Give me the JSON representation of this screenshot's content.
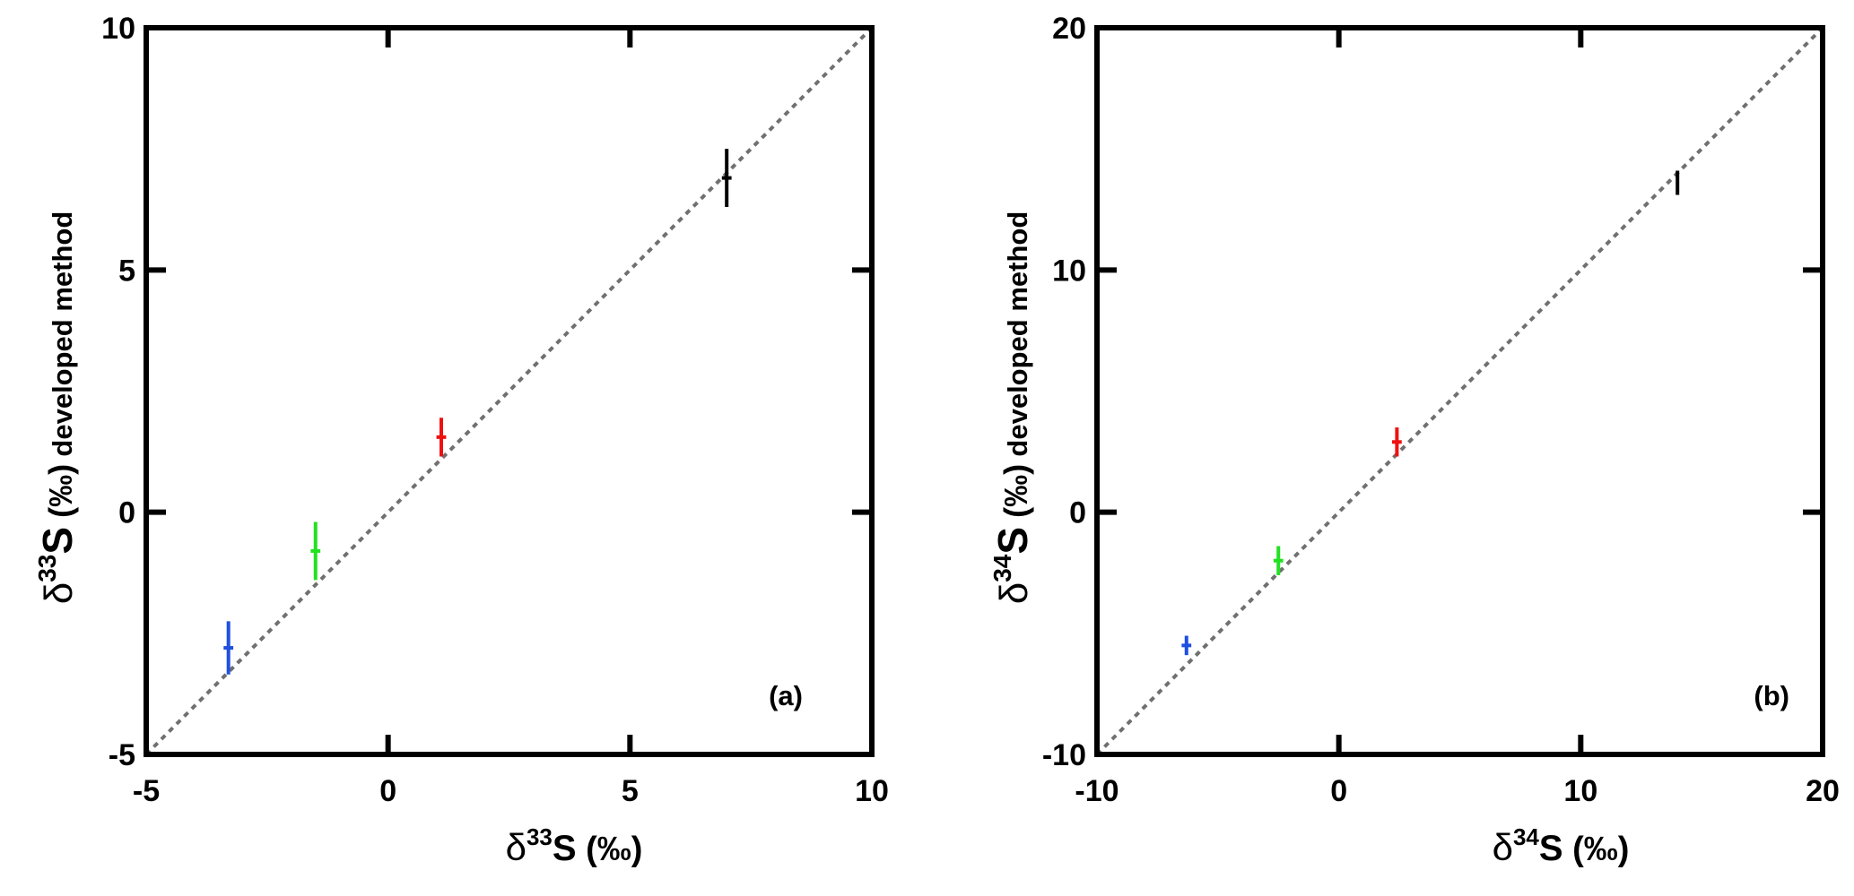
{
  "chart_data": [
    {
      "type": "scatter",
      "panel_label": "(a)",
      "xlabel": {
        "prefix": "δ",
        "sup": "33",
        "main": "S",
        "rest": " (‰)"
      },
      "ylabel": {
        "prefix": "δ",
        "sup": "33",
        "main": "S",
        "rest": " (‰)",
        "suffix": "developed method"
      },
      "xlim": [
        -5,
        10
      ],
      "ylim": [
        -5,
        10
      ],
      "xticks": [
        "-5",
        "0",
        "5",
        "10"
      ],
      "yticks": [
        "-5",
        "0",
        "5",
        "10"
      ],
      "reference_line": {
        "style": "dotted",
        "color": "#707070",
        "from": [
          -5,
          -5
        ],
        "to": [
          10,
          10
        ]
      },
      "series": [
        {
          "color": "#1f4fe0",
          "x": -3.3,
          "y": -2.8,
          "yerr": 0.55,
          "xerr": 0.1
        },
        {
          "color": "#22e022",
          "x": -1.5,
          "y": -0.8,
          "yerr": 0.6,
          "xerr": 0.1
        },
        {
          "color": "#ee1111",
          "x": 1.1,
          "y": 1.55,
          "yerr": 0.4,
          "xerr": 0.1
        },
        {
          "color": "#000000",
          "x": 7.0,
          "y": 6.9,
          "yerr": 0.6,
          "xerr": 0.1
        }
      ]
    },
    {
      "type": "scatter",
      "panel_label": "(b)",
      "xlabel": {
        "prefix": "δ",
        "sup": "34",
        "main": "S",
        "rest": " (‰)"
      },
      "ylabel": {
        "prefix": "δ",
        "sup": "34",
        "main": "S",
        "rest": " (‰)",
        "suffix": "developed method"
      },
      "xlim": [
        -10,
        20
      ],
      "ylim": [
        -10,
        20
      ],
      "xticks": [
        "-10",
        "0",
        "10",
        "20"
      ],
      "yticks": [
        "-10",
        "0",
        "10",
        "20"
      ],
      "reference_line": {
        "style": "dotted",
        "color": "#707070",
        "from": [
          -10,
          -10
        ],
        "to": [
          20,
          20
        ]
      },
      "series": [
        {
          "color": "#1f4fe0",
          "x": -6.3,
          "y": -5.5,
          "yerr": 0.4,
          "xerr": 0.2
        },
        {
          "color": "#22e022",
          "x": -2.5,
          "y": -2.0,
          "yerr": 0.6,
          "xerr": 0.2
        },
        {
          "color": "#ee1111",
          "x": 2.4,
          "y": 2.9,
          "yerr": 0.6,
          "xerr": 0.2
        },
        {
          "color": "#000000",
          "x": 14.0,
          "y": 13.6,
          "yerr": 0.5,
          "xerr": 0.05
        }
      ]
    }
  ]
}
